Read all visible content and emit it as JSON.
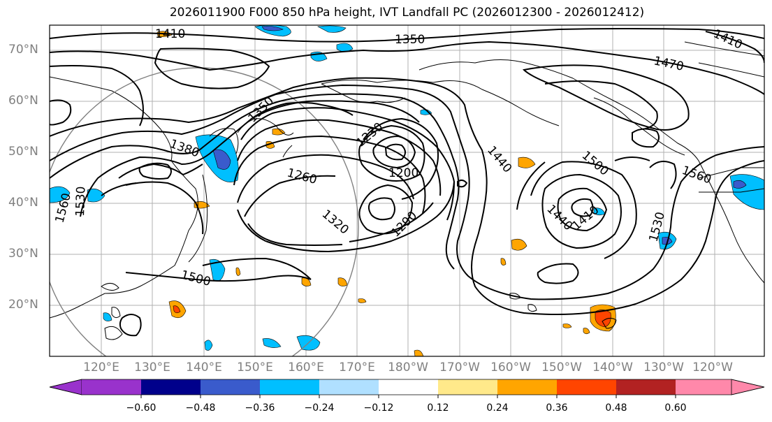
{
  "title": "2026011900 F000 850 hPa height, IVT Landfall PC (2026012300 - 2026012412)",
  "lat_labels": [
    "70°N",
    "60°N",
    "50°N",
    "40°N",
    "30°N",
    "20°N"
  ],
  "lon_labels": [
    "120°E",
    "130°E",
    "140°E",
    "150°E",
    "160°E",
    "170°E",
    "180°W",
    "170°W",
    "160°W",
    "150°W",
    "140°W",
    "130°W",
    "120°W"
  ],
  "contour_labels": [
    "1410",
    "1350",
    "1470",
    "1410",
    "1350",
    "1380",
    "1230",
    "1200",
    "1260",
    "1440",
    "1500",
    "1560",
    "1560",
    "1530",
    "1320",
    "1290",
    "1440",
    "1410",
    "1530",
    "1500"
  ],
  "colorbar": {
    "ticks": [
      "−0.60",
      "−0.48",
      "−0.36",
      "−0.24",
      "−0.12",
      "0.12",
      "0.24",
      "0.36",
      "0.48",
      "0.60"
    ],
    "colors": [
      "#9932cc",
      "#00008b",
      "#3a5bcc",
      "#00bfff",
      "#b0e0ff",
      "#ffffff",
      "#ffe98a",
      "#ffa500",
      "#ff4500",
      "#b22222",
      "#ff88aa"
    ]
  }
}
